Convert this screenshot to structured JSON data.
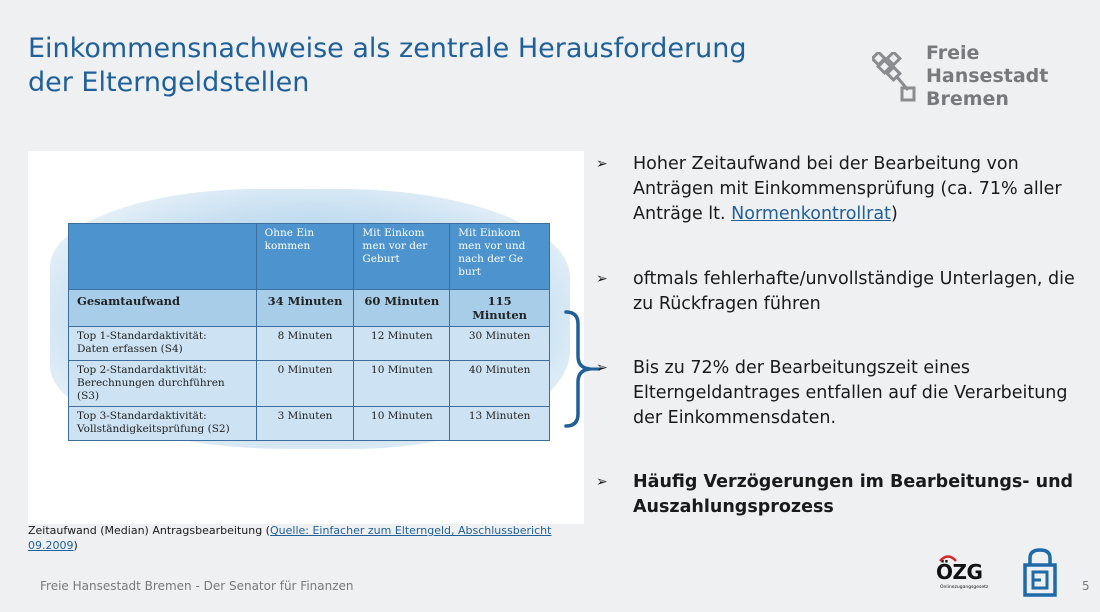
{
  "title": {
    "line1": "Einkommensnachweise als zentrale Herausforderung",
    "line2": "der Elterngeldstellen"
  },
  "logo": {
    "line1": "Freie",
    "line2": "Hansestadt",
    "line3": "Bremen",
    "icon": "bremen-key-icon"
  },
  "table": {
    "headers": [
      "",
      "Ohne Ein\nkommen",
      "Mit Einkom\nmen vor der\nGeburt",
      "Mit Einkom\nmen vor und\nnach der Ge\nburt"
    ],
    "total": {
      "label": "Gesamtaufwand",
      "values": [
        "34 Minuten",
        "60 Minuten",
        "115 Minuten"
      ]
    },
    "rows": [
      {
        "label": "Top 1-Standardaktivität:\nDaten erfassen (S4)",
        "values": [
          "8 Minuten",
          "12 Minuten",
          "30 Minuten"
        ]
      },
      {
        "label": "Top 2-Standardaktivität:\nBerechnungen durchführen (S3)",
        "values": [
          "0 Minuten",
          "10 Minuten",
          "40 Minuten"
        ]
      },
      {
        "label": "Top 3-Standardaktivität:\nVollständigkeitsprüfung (S2)",
        "values": [
          "3 Minuten",
          "10 Minuten",
          "13 Minuten"
        ]
      }
    ]
  },
  "caption": {
    "prefix": "Zeitaufwand (Median) Antragsbearbeitung (",
    "link": "Quelle: Einfacher zum Elterngeld, Abschlussbericht 09.2009",
    "suffix": ")"
  },
  "bullets": [
    {
      "pre": "Hoher Zeitaufwand bei der Bearbeitung von Anträgen mit Einkommensprüfung (ca. 71% aller Anträge lt. ",
      "link": "Normenkontrollrat",
      "post": ")"
    },
    {
      "pre": "oftmals fehlerhafte/unvollständige Unterlagen, die zu Rückfragen führen",
      "link": "",
      "post": ""
    },
    {
      "pre": "Bis zu 72% der Bearbeitungszeit eines Elterngeldantrages entfallen auf die Verarbeitung der Einkommensdaten.",
      "link": "",
      "post": ""
    },
    {
      "pre": "Häufig Verzögerungen im Bearbeitungs- und Auszahlungsprozess",
      "link": "",
      "post": ""
    }
  ],
  "bullet_marker": "➢",
  "footer": "Freie Hansestadt Bremen - Der Senator für Finanzen",
  "page_number": "5",
  "ozg_logo": {
    "word": "ÖZG",
    "sub": "Onlinezugangsgesetz"
  },
  "colors": {
    "title": "#1f5f9a",
    "table_header": "#4d94cf",
    "link": "#1f5f9a",
    "brace": "#1f5f9a",
    "logo_text": "#77797c"
  }
}
